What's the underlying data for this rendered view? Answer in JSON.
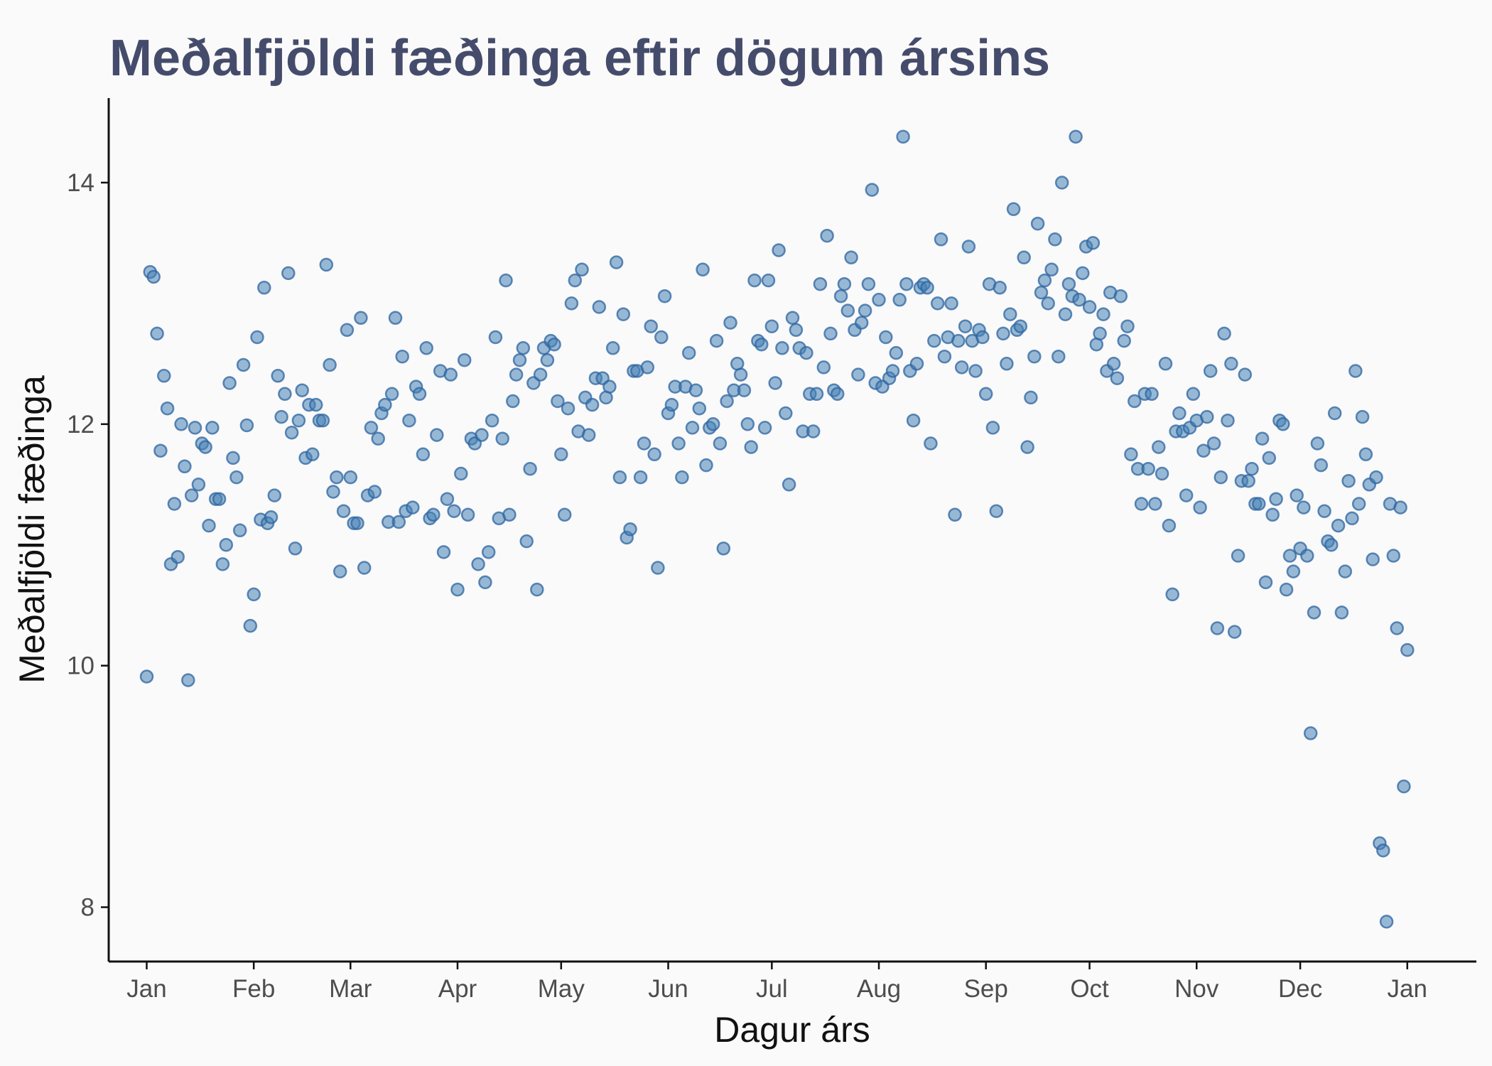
{
  "chart_data": {
    "type": "scatter",
    "title": "Meðalfjöldi fæðinga eftir dögum ársins",
    "xlabel": "Dagur árs",
    "ylabel": "Meðalfjöldi fæðinga",
    "x_tick_labels": [
      "Jan",
      "Feb",
      "Mar",
      "Apr",
      "May",
      "Jun",
      "Jul",
      "Aug",
      "Sep",
      "Oct",
      "Nov",
      "Dec",
      "Jan"
    ],
    "y_ticks": [
      8,
      10,
      12,
      14
    ],
    "xlim": [
      -10,
      386
    ],
    "ylim": [
      7.55,
      14.7
    ],
    "grid": false,
    "legend": "none",
    "point_color": "#4682B4",
    "title_color": "#454C6B",
    "series": [
      {
        "x": [
          1,
          2,
          3,
          4,
          5,
          6,
          7,
          8,
          9,
          10,
          11,
          12,
          13,
          14,
          15,
          16,
          17,
          18,
          19,
          20,
          21,
          22,
          23,
          24,
          25,
          26,
          27,
          28,
          29,
          30,
          31,
          32,
          33,
          34,
          35,
          36,
          37,
          38,
          39,
          40,
          41,
          42,
          43,
          44,
          45,
          46,
          47,
          48,
          49,
          50,
          51,
          52,
          53,
          54,
          55,
          56,
          57,
          58,
          59,
          60,
          61,
          62,
          63,
          64,
          65,
          66,
          67,
          68,
          69,
          70,
          71,
          72,
          73,
          74,
          75,
          76,
          77,
          78,
          79,
          80,
          81,
          82,
          83,
          84,
          85,
          86,
          87,
          88,
          89,
          90,
          91,
          92,
          93,
          94,
          95,
          96,
          97,
          98,
          99,
          100,
          101,
          102,
          103,
          104,
          105,
          106,
          107,
          108,
          109,
          110,
          111,
          112,
          113,
          114,
          115,
          116,
          117,
          118,
          119,
          120,
          121,
          122,
          123,
          124,
          125,
          126,
          127,
          128,
          129,
          130,
          131,
          132,
          133,
          134,
          135,
          136,
          137,
          138,
          139,
          140,
          141,
          142,
          143,
          144,
          145,
          146,
          147,
          148,
          149,
          150,
          151,
          152,
          153,
          154,
          155,
          156,
          157,
          158,
          159,
          160,
          161,
          162,
          163,
          164,
          165,
          166,
          167,
          168,
          169,
          170,
          171,
          172,
          173,
          174,
          175,
          176,
          177,
          178,
          179,
          180,
          181,
          182,
          183,
          184,
          185,
          186,
          187,
          188,
          189,
          190,
          191,
          192,
          193,
          194,
          195,
          196,
          197,
          198,
          199,
          200,
          201,
          202,
          203,
          204,
          205,
          206,
          207,
          208,
          209,
          210,
          211,
          212,
          213,
          214,
          215,
          216,
          217,
          218,
          219,
          220,
          221,
          222,
          223,
          224,
          225,
          226,
          227,
          228,
          229,
          230,
          231,
          232,
          233,
          234,
          235,
          236,
          237,
          238,
          239,
          240,
          241,
          242,
          243,
          244,
          245,
          246,
          247,
          248,
          249,
          250,
          251,
          252,
          253,
          254,
          255,
          256,
          257,
          258,
          259,
          260,
          261,
          262,
          263,
          264,
          265,
          266,
          267,
          268,
          269,
          270,
          271,
          272,
          273,
          274,
          275,
          276,
          277,
          278,
          279,
          280,
          281,
          282,
          283,
          284,
          285,
          286,
          287,
          288,
          289,
          290,
          291,
          292,
          293,
          294,
          295,
          296,
          297,
          298,
          299,
          300,
          301,
          302,
          303,
          304,
          305,
          306,
          307,
          308,
          309,
          310,
          311,
          312,
          313,
          314,
          315,
          316,
          317,
          318,
          319,
          320,
          321,
          322,
          323,
          324,
          325,
          326,
          327,
          328,
          329,
          330,
          331,
          332,
          333,
          334,
          335,
          336,
          337,
          338,
          339,
          340,
          341,
          342,
          343,
          344,
          345,
          346,
          347,
          348,
          349,
          350,
          351,
          352,
          353,
          354,
          355,
          356,
          357,
          358,
          359,
          360,
          361,
          362,
          363,
          364,
          365,
          366
        ],
        "y": [
          9.91,
          13.26,
          13.22,
          12.75,
          11.78,
          12.4,
          12.13,
          10.84,
          11.34,
          10.9,
          12.0,
          11.65,
          9.88,
          11.41,
          11.97,
          11.5,
          11.84,
          11.81,
          11.16,
          11.97,
          11.38,
          11.38,
          10.84,
          11.0,
          12.34,
          11.72,
          11.56,
          11.12,
          12.49,
          11.99,
          10.33,
          10.59,
          12.72,
          11.21,
          13.13,
          11.18,
          11.23,
          11.41,
          12.4,
          12.06,
          12.25,
          13.25,
          11.93,
          10.97,
          12.03,
          12.28,
          11.72,
          12.16,
          11.75,
          12.16,
          12.03,
          12.03,
          13.32,
          12.49,
          11.44,
          11.56,
          10.78,
          11.28,
          12.78,
          11.56,
          11.18,
          11.18,
          12.88,
          10.81,
          11.41,
          11.97,
          11.44,
          11.88,
          12.09,
          12.16,
          11.19,
          12.25,
          12.88,
          11.19,
          12.56,
          11.28,
          12.03,
          11.31,
          12.31,
          12.25,
          11.75,
          12.63,
          11.22,
          11.25,
          11.91,
          12.44,
          10.94,
          11.38,
          12.41,
          11.28,
          10.63,
          11.59,
          12.53,
          11.25,
          11.88,
          11.84,
          10.84,
          11.91,
          10.69,
          10.94,
          12.03,
          12.72,
          11.22,
          11.88,
          13.19,
          11.25,
          12.19,
          12.41,
          12.53,
          12.63,
          11.03,
          11.63,
          12.34,
          10.63,
          12.41,
          12.63,
          12.53,
          12.69,
          12.66,
          12.19,
          11.75,
          11.25,
          12.13,
          13.0,
          13.19,
          11.94,
          13.28,
          12.22,
          11.91,
          12.16,
          12.38,
          12.97,
          12.38,
          12.22,
          12.31,
          12.63,
          13.34,
          11.56,
          12.91,
          11.06,
          11.13,
          12.44,
          12.44,
          11.56,
          11.84,
          12.47,
          12.81,
          11.75,
          10.81,
          12.72,
          13.06,
          12.09,
          12.16,
          12.31,
          11.84,
          11.56,
          12.31,
          12.59,
          11.97,
          12.28,
          12.13,
          13.28,
          11.66,
          11.97,
          12.0,
          12.69,
          11.84,
          10.97,
          12.19,
          12.84,
          12.28,
          12.5,
          12.41,
          12.28,
          12.0,
          11.81,
          13.19,
          12.69,
          12.66,
          11.97,
          13.19,
          12.81,
          12.34,
          13.44,
          12.63,
          12.09,
          11.5,
          12.88,
          12.78,
          12.63,
          11.94,
          12.59,
          12.25,
          11.94,
          12.25,
          13.16,
          12.47,
          13.56,
          12.75,
          12.28,
          12.25,
          13.06,
          13.16,
          12.94,
          13.38,
          12.78,
          12.41,
          12.84,
          12.94,
          13.16,
          13.94,
          12.34,
          13.03,
          12.31,
          12.72,
          12.38,
          12.44,
          12.59,
          13.03,
          14.38,
          13.16,
          12.44,
          12.03,
          12.5,
          13.13,
          13.16,
          13.13,
          11.84,
          12.69,
          13.0,
          13.53,
          12.56,
          12.72,
          13.0,
          11.25,
          12.69,
          12.47,
          12.81,
          13.47,
          12.69,
          12.44,
          12.78,
          12.72,
          12.25,
          13.16,
          11.97,
          11.28,
          13.13,
          12.75,
          12.5,
          12.91,
          13.78,
          12.78,
          12.81,
          13.38,
          11.81,
          12.22,
          12.56,
          13.66,
          13.09,
          13.19,
          13.0,
          13.28,
          13.53,
          12.56,
          14.0,
          12.91,
          13.16,
          13.06,
          14.38,
          13.03,
          13.25,
          13.47,
          12.97,
          13.5,
          12.66,
          12.75,
          12.91,
          12.44,
          13.09,
          12.5,
          12.38,
          13.06,
          12.69,
          12.81,
          11.75,
          12.19,
          11.63,
          11.34,
          12.25,
          11.63,
          12.25,
          11.34,
          11.81,
          11.59,
          12.5,
          11.16,
          10.59,
          11.94,
          12.09,
          11.94,
          11.41,
          11.97,
          12.25,
          12.03,
          11.31,
          11.78,
          12.06,
          12.44,
          11.84,
          10.31,
          11.56,
          12.75,
          12.03,
          12.5,
          10.28,
          10.91,
          11.53,
          12.41,
          11.53,
          11.63,
          11.34,
          11.34,
          11.88,
          10.69,
          11.72,
          11.25,
          11.38,
          12.03,
          12.0,
          10.63,
          10.91,
          10.78,
          11.41,
          10.97,
          11.31,
          10.91,
          9.44,
          10.44,
          11.84,
          11.66,
          11.28,
          11.03,
          11.0,
          12.09,
          11.16,
          10.44,
          10.78,
          11.53,
          11.22,
          12.44,
          11.34,
          12.06,
          11.75,
          11.5,
          10.88,
          11.56,
          8.53,
          8.47,
          7.88,
          11.34,
          10.91,
          10.31,
          11.31,
          9.0,
          10.13
        ]
      }
    ]
  }
}
